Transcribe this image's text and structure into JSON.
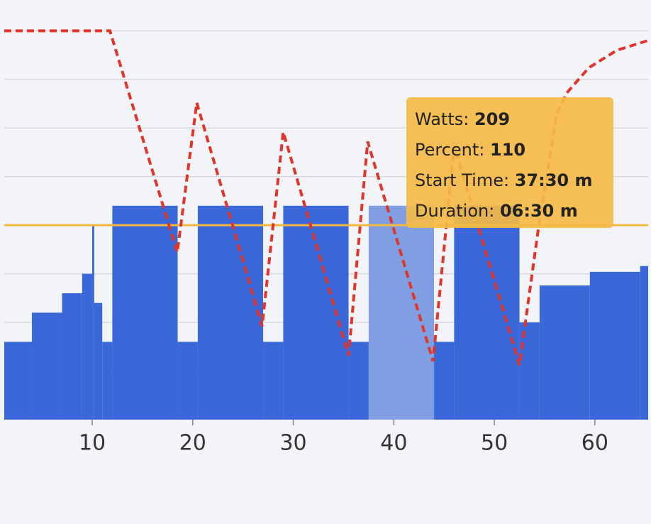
{
  "chart_data": {
    "type": "histogram",
    "bins": [
      1.25,
      4,
      7,
      9,
      10,
      10.2,
      11,
      12,
      18.5,
      20.5,
      27,
      29,
      35.5,
      37.5,
      44,
      46,
      52.5,
      54.5,
      59.5,
      64.5,
      65.3
    ],
    "values": [
      40,
      55,
      65,
      75,
      100,
      60,
      40,
      110,
      40,
      110,
      40,
      110,
      40,
      110,
      40,
      110,
      50,
      69,
      76,
      79
    ],
    "color": "#3b68d8",
    "highlight_index": 13,
    "highlight_color": "#809fe3",
    "line": {
      "color": "#e0352b",
      "x": [
        1.25,
        11.76,
        18.46,
        20.4,
        26.9,
        29.0,
        35.5,
        37.4,
        43.9,
        46.0,
        52.5,
        54.4,
        56.2,
        57.2,
        59.4,
        62.2,
        65.3
      ],
      "values": [
        200,
        200,
        86,
        163,
        48,
        148,
        33,
        143,
        30,
        141,
        28,
        99,
        157,
        168,
        181,
        190,
        195
      ]
    },
    "ftp_line": 100,
    "ftp_color": "#f0b840",
    "xlim": [
      1.25,
      65.3
    ],
    "xticks": [
      10,
      20,
      30,
      40,
      50,
      60
    ],
    "ylim": [
      0,
      214
    ],
    "ygrid": [
      25,
      50,
      75,
      125,
      150,
      175,
      200
    ],
    "tooltip": [
      {
        "label": "Watts:",
        "value": "209"
      },
      {
        "label": "Percent:",
        "value": "110"
      },
      {
        "label": "Start Time:",
        "value": "37:30 m"
      },
      {
        "label": "Duration:",
        "value": "06:30 m"
      }
    ]
  }
}
